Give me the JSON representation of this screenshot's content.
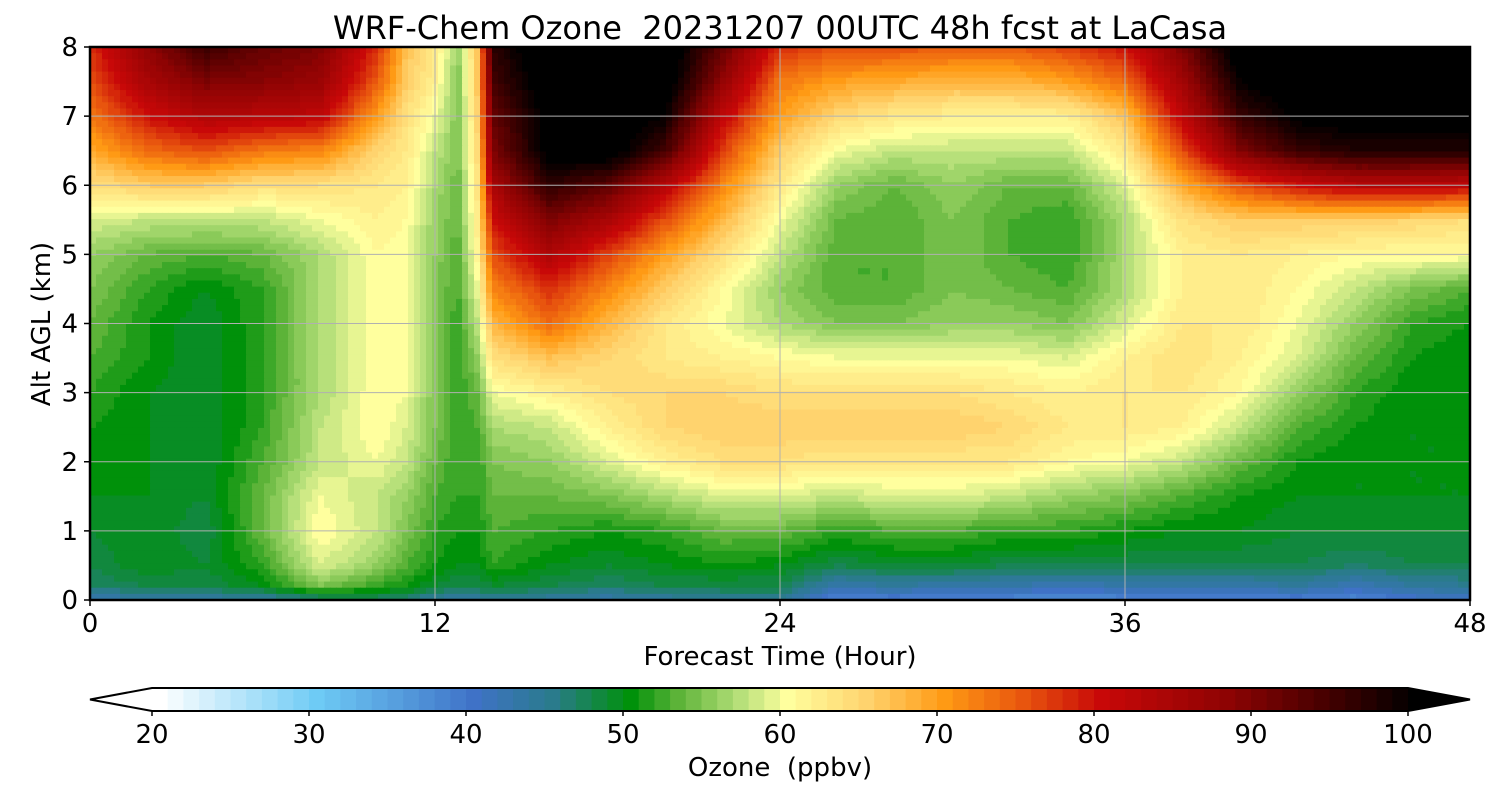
{
  "chart_data": {
    "type": "heatmap",
    "title": "WRF-Chem Ozone  20231207 00UTC 48h fcst at LaCasa",
    "xlabel": "Forecast Time (Hour)",
    "ylabel": "Alt AGL (km)",
    "xlim": [
      0,
      48
    ],
    "ylim": [
      0,
      8
    ],
    "xticks": [
      0,
      12,
      24,
      36,
      48
    ],
    "yticks": [
      0,
      1,
      2,
      3,
      4,
      5,
      6,
      7,
      8
    ],
    "grid": true,
    "x": [
      0,
      2,
      4,
      6,
      8,
      10,
      11,
      12,
      12.8,
      13.5,
      14,
      16,
      18,
      20,
      22,
      24,
      26,
      28,
      30,
      32,
      34,
      36,
      38,
      40,
      42,
      44,
      46,
      48
    ],
    "y": [
      0,
      0.2,
      0.5,
      1,
      1.5,
      2,
      2.5,
      3,
      3.5,
      4,
      4.5,
      5,
      5.5,
      6,
      6.5,
      7,
      7.5,
      8
    ],
    "z": [
      [
        42,
        44,
        44,
        44,
        46,
        47,
        46,
        44,
        44,
        44,
        45,
        44,
        43,
        44,
        45,
        45,
        38,
        39,
        38,
        38,
        37,
        38,
        38,
        38,
        39,
        38,
        40,
        41
      ],
      [
        47,
        48,
        48,
        50,
        55,
        52,
        51,
        49,
        48,
        48,
        49,
        48,
        47,
        48,
        48,
        48,
        43,
        44,
        43,
        43,
        42,
        43,
        43,
        43,
        44,
        42,
        44,
        45
      ],
      [
        48,
        50,
        49,
        52,
        59,
        56,
        53,
        51,
        50,
        50,
        52,
        50,
        49,
        50,
        51,
        50,
        48,
        49,
        49,
        48,
        48,
        48,
        48,
        48,
        48,
        47,
        48,
        48
      ],
      [
        49,
        50,
        48,
        54,
        61,
        58,
        55,
        52,
        51,
        51,
        53,
        52,
        51,
        52,
        54,
        54,
        52,
        53,
        53,
        52,
        52,
        51,
        50,
        50,
        49,
        49,
        49,
        49
      ],
      [
        50,
        50,
        49,
        54,
        60,
        58,
        56,
        53,
        52,
        52,
        54,
        54,
        55,
        57,
        59,
        59,
        58,
        59,
        59,
        58,
        56,
        55,
        53,
        51,
        50,
        50,
        50,
        50
      ],
      [
        51,
        50,
        49,
        53,
        58,
        60,
        58,
        54,
        52,
        52,
        55,
        56,
        59,
        62,
        64,
        64,
        63,
        63,
        63,
        63,
        61,
        60,
        58,
        54,
        51,
        50,
        50,
        50
      ],
      [
        51,
        50,
        49,
        52,
        58,
        61,
        59,
        55,
        52,
        53,
        57,
        58,
        62,
        65,
        66,
        66,
        66,
        66,
        66,
        65,
        63,
        63,
        62,
        58,
        53,
        51,
        50,
        50
      ],
      [
        52,
        50,
        49,
        52,
        57,
        61,
        60,
        55,
        52,
        54,
        60,
        62,
        64,
        65,
        65,
        64,
        64,
        64,
        64,
        63,
        62,
        63,
        63,
        61,
        56,
        52,
        50,
        50
      ],
      [
        53,
        51,
        49,
        52,
        57,
        61,
        60,
        55,
        52,
        56,
        64,
        67,
        65,
        63,
        62,
        61,
        60,
        60,
        60,
        60,
        59,
        62,
        64,
        62,
        59,
        54,
        51,
        50
      ],
      [
        54,
        51,
        49,
        52,
        57,
        61,
        60,
        55,
        52,
        58,
        68,
        74,
        68,
        63,
        60,
        57,
        55,
        55,
        56,
        56,
        55,
        59,
        63,
        63,
        60,
        56,
        52,
        51
      ],
      [
        55,
        52,
        50,
        52,
        57,
        61,
        60,
        55,
        53,
        60,
        72,
        78,
        72,
        66,
        61,
        56,
        53,
        53,
        55,
        54,
        53,
        57,
        62,
        63,
        61,
        58,
        55,
        53
      ],
      [
        56,
        54,
        53,
        54,
        57,
        61,
        60,
        56,
        53,
        62,
        76,
        84,
        77,
        70,
        64,
        58,
        53,
        53,
        55,
        53,
        52,
        57,
        62,
        63,
        62,
        61,
        61,
        61
      ],
      [
        59,
        58,
        58,
        58,
        60,
        62,
        61,
        56,
        54,
        63,
        80,
        90,
        85,
        76,
        68,
        60,
        54,
        53,
        55,
        53,
        52,
        57,
        64,
        66,
        66,
        66,
        65,
        64
      ],
      [
        64,
        66,
        66,
        64,
        64,
        63,
        62,
        57,
        54,
        64,
        85,
        97,
        93,
        83,
        72,
        63,
        56,
        54,
        56,
        54,
        54,
        59,
        69,
        76,
        80,
        83,
        83,
        82
      ],
      [
        69,
        74,
        76,
        73,
        72,
        65,
        63,
        58,
        55,
        65,
        90,
        102,
        103,
        95,
        77,
        66,
        60,
        58,
        58,
        58,
        58,
        63,
        76,
        90,
        96,
        98,
        98,
        98
      ],
      [
        73,
        80,
        84,
        83,
        82,
        70,
        64,
        60,
        55,
        66,
        92,
        102,
        103,
        100,
        82,
        70,
        65,
        63,
        62,
        62,
        62,
        67,
        82,
        96,
        101,
        102,
        102,
        102
      ],
      [
        76,
        85,
        90,
        89,
        87,
        75,
        66,
        62,
        55,
        67,
        95,
        103,
        104,
        103,
        88,
        73,
        70,
        69,
        68,
        68,
        70,
        74,
        86,
        100,
        103,
        104,
        104,
        104
      ],
      [
        78,
        88,
        96,
        92,
        90,
        78,
        67,
        63,
        56,
        67,
        97,
        104,
        105,
        104,
        92,
        78,
        76,
        76,
        75,
        75,
        77,
        80,
        90,
        103,
        105,
        105,
        105,
        105
      ]
    ]
  },
  "colorbar": {
    "label": "Ozone  (ppbv)",
    "min": 20,
    "max": 100,
    "step": 1,
    "ticks": [
      20,
      30,
      40,
      50,
      60,
      70,
      80,
      90,
      100
    ],
    "extend": "both",
    "stops": [
      [
        20,
        "#ffffff"
      ],
      [
        30,
        "#6ecbf5"
      ],
      [
        40,
        "#3f72c7"
      ],
      [
        45,
        "#2a7b8c"
      ],
      [
        50,
        "#00910a"
      ],
      [
        53,
        "#5cb338"
      ],
      [
        57,
        "#b7e07a"
      ],
      [
        60,
        "#ffff9e"
      ],
      [
        65,
        "#ffd36e"
      ],
      [
        70,
        "#ff9a14"
      ],
      [
        75,
        "#e8550e"
      ],
      [
        80,
        "#c80808"
      ],
      [
        88,
        "#8e0303"
      ],
      [
        95,
        "#3d0000"
      ],
      [
        100,
        "#000000"
      ]
    ]
  }
}
